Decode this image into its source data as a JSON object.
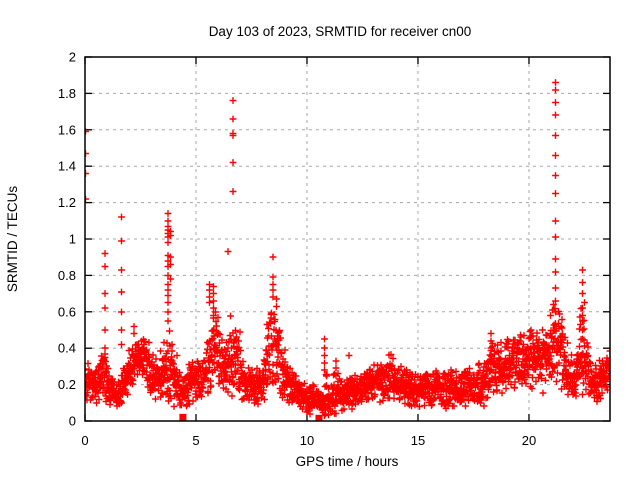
{
  "window": {
    "background": "#ffffff"
  },
  "chart_data": {
    "type": "scatter",
    "title": "Day 103 of 2023, SRMTID for receiver cn00",
    "xlabel": "GPS time / hours",
    "ylabel": "SRMTID / TECUs",
    "xlim": [
      0,
      23.65
    ],
    "ylim": [
      0,
      2
    ],
    "xticks": [
      {
        "v": 0,
        "label": "0"
      },
      {
        "v": 5,
        "label": "5"
      },
      {
        "v": 10,
        "label": "10"
      },
      {
        "v": 15,
        "label": "15"
      },
      {
        "v": 20,
        "label": "20"
      }
    ],
    "yticks": [
      {
        "v": 0,
        "label": "0"
      },
      {
        "v": 0.2,
        "label": "0.2"
      },
      {
        "v": 0.4,
        "label": "0.4"
      },
      {
        "v": 0.6,
        "label": "0.6"
      },
      {
        "v": 0.8,
        "label": "0.8"
      },
      {
        "v": 1,
        "label": "1"
      },
      {
        "v": 1.2,
        "label": "1.2"
      },
      {
        "v": 1.4,
        "label": "1.4"
      },
      {
        "v": 1.6,
        "label": "1.6"
      },
      {
        "v": 1.8,
        "label": "1.8"
      },
      {
        "v": 2,
        "label": "2"
      }
    ],
    "grid": true,
    "grid_style": "dashed",
    "grid_color": "#a8a8a8",
    "border_color": "#000000",
    "marker": "plus",
    "marker_color": "#ff0000",
    "sampling_interval_hours": 0.01,
    "seed": 20230103,
    "baseline_envelope": [
      [
        0.0,
        0.22,
        0.06
      ],
      [
        0.5,
        0.2,
        0.06
      ],
      [
        0.9,
        0.27,
        0.09
      ],
      [
        1.1,
        0.17,
        0.05
      ],
      [
        1.6,
        0.15,
        0.05
      ],
      [
        2.0,
        0.28,
        0.08
      ],
      [
        2.4,
        0.35,
        0.07
      ],
      [
        2.8,
        0.32,
        0.08
      ],
      [
        3.1,
        0.23,
        0.08
      ],
      [
        3.4,
        0.28,
        0.1
      ],
      [
        3.75,
        0.3,
        0.13
      ],
      [
        4.1,
        0.22,
        0.09
      ],
      [
        4.4,
        0.16,
        0.06
      ],
      [
        4.7,
        0.2,
        0.07
      ],
      [
        5.0,
        0.25,
        0.08
      ],
      [
        5.3,
        0.22,
        0.07
      ],
      [
        5.6,
        0.32,
        0.12
      ],
      [
        5.8,
        0.45,
        0.16
      ],
      [
        6.05,
        0.35,
        0.11
      ],
      [
        6.3,
        0.25,
        0.08
      ],
      [
        6.6,
        0.4,
        0.15
      ],
      [
        6.9,
        0.33,
        0.12
      ],
      [
        7.2,
        0.22,
        0.07
      ],
      [
        7.6,
        0.18,
        0.06
      ],
      [
        8.0,
        0.2,
        0.07
      ],
      [
        8.35,
        0.45,
        0.17
      ],
      [
        8.65,
        0.4,
        0.15
      ],
      [
        8.9,
        0.28,
        0.1
      ],
      [
        9.2,
        0.2,
        0.07
      ],
      [
        9.6,
        0.15,
        0.05
      ],
      [
        10.0,
        0.12,
        0.05
      ],
      [
        10.4,
        0.12,
        0.05
      ],
      [
        10.7,
        0.1,
        0.04
      ],
      [
        10.85,
        0.18,
        0.1
      ],
      [
        11.0,
        0.12,
        0.05
      ],
      [
        11.3,
        0.16,
        0.08
      ],
      [
        11.6,
        0.13,
        0.05
      ],
      [
        12.0,
        0.16,
        0.06
      ],
      [
        12.5,
        0.19,
        0.06
      ],
      [
        13.0,
        0.22,
        0.07
      ],
      [
        13.5,
        0.23,
        0.08
      ],
      [
        14.0,
        0.24,
        0.08
      ],
      [
        14.5,
        0.19,
        0.06
      ],
      [
        15.0,
        0.17,
        0.06
      ],
      [
        15.5,
        0.18,
        0.06
      ],
      [
        16.0,
        0.17,
        0.06
      ],
      [
        16.5,
        0.18,
        0.06
      ],
      [
        17.0,
        0.18,
        0.07
      ],
      [
        17.5,
        0.19,
        0.07
      ],
      [
        18.0,
        0.22,
        0.08
      ],
      [
        18.35,
        0.32,
        0.11
      ],
      [
        18.7,
        0.27,
        0.09
      ],
      [
        19.1,
        0.3,
        0.09
      ],
      [
        19.5,
        0.32,
        0.1
      ],
      [
        19.9,
        0.33,
        0.1
      ],
      [
        20.3,
        0.35,
        0.1
      ],
      [
        20.6,
        0.33,
        0.1
      ],
      [
        20.9,
        0.38,
        0.12
      ],
      [
        21.15,
        0.45,
        0.14
      ],
      [
        21.45,
        0.4,
        0.14
      ],
      [
        21.8,
        0.25,
        0.08
      ],
      [
        22.1,
        0.22,
        0.07
      ],
      [
        22.35,
        0.42,
        0.16
      ],
      [
        22.6,
        0.28,
        0.1
      ],
      [
        22.9,
        0.2,
        0.06
      ],
      [
        23.2,
        0.23,
        0.07
      ],
      [
        23.65,
        0.28,
        0.08
      ]
    ],
    "spike_columns": [
      {
        "x": 0.02,
        "ys": [
          1.59,
          1.47,
          1.36,
          1.22
        ]
      },
      {
        "x": 0.9,
        "ys": [
          0.92,
          0.85,
          0.7,
          0.62,
          0.5,
          0.4,
          0.35
        ]
      },
      {
        "x": 1.65,
        "ys": [
          1.12,
          0.99,
          0.83,
          0.71,
          0.6,
          0.5,
          0.42
        ]
      },
      {
        "x": 2.2,
        "ys": [
          0.52,
          0.48
        ]
      },
      {
        "x": 3.75,
        "ys": [
          1.14,
          1.1,
          1.07,
          1.05,
          1.03,
          1.01,
          0.98,
          0.91,
          0.88,
          0.85,
          0.8,
          0.75,
          0.72,
          0.69,
          0.65,
          0.6,
          0.55
        ]
      },
      {
        "x": 3.85,
        "ys": [
          1.04,
          1.02,
          0.9,
          0.86,
          0.78
        ]
      },
      {
        "x": 5.6,
        "ys": [
          0.75,
          0.72,
          0.68,
          0.65
        ]
      },
      {
        "x": 5.78,
        "ys": [
          0.74,
          0.7,
          0.66,
          0.62,
          0.58
        ]
      },
      {
        "x": 6.44,
        "ys": [
          0.93
        ]
      },
      {
        "x": 6.67,
        "ys": [
          1.76,
          1.66,
          1.58,
          1.57,
          1.42,
          1.26
        ]
      },
      {
        "x": 8.47,
        "ys": [
          0.9,
          0.79,
          0.75,
          0.72,
          0.68
        ]
      },
      {
        "x": 8.62,
        "ys": [
          0.67,
          0.63
        ]
      },
      {
        "x": 10.8,
        "ys": [
          0.45,
          0.4,
          0.36,
          0.32,
          0.28
        ]
      },
      {
        "x": 11.3,
        "ys": [
          0.33,
          0.29,
          0.25
        ]
      },
      {
        "x": 11.9,
        "ys": [
          0.36
        ]
      },
      {
        "x": 18.3,
        "ys": [
          0.48,
          0.44,
          0.4,
          0.36,
          0.32
        ]
      },
      {
        "x": 21.1,
        "ys": [
          0.64
        ]
      },
      {
        "x": 21.2,
        "ys": [
          1.86,
          1.82,
          1.75,
          1.68,
          1.57,
          1.46,
          1.35,
          1.25,
          1.1,
          1.01,
          0.89,
          0.82,
          0.73,
          0.66,
          0.6
        ]
      },
      {
        "x": 22.4,
        "ys": [
          0.83,
          0.76,
          0.7,
          0.62,
          0.58,
          0.55,
          0.5,
          0.45
        ]
      },
      {
        "x": 22.5,
        "ys": [
          0.65
        ]
      }
    ],
    "square_markers": [
      {
        "x": 4.41,
        "y": 0.02
      },
      {
        "x": 10.54,
        "y": 0.015
      }
    ]
  }
}
